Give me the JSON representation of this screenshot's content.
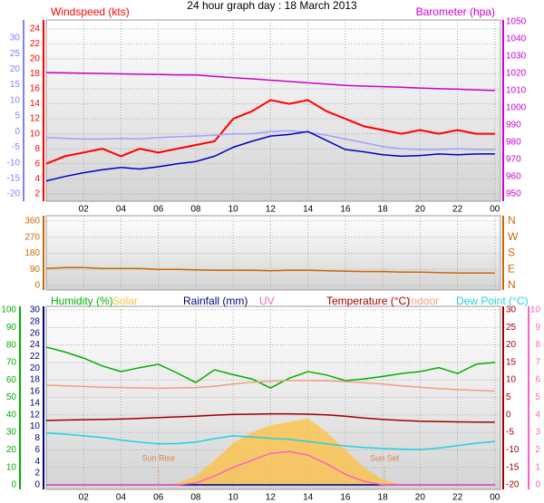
{
  "chart_data": [
    {
      "type": "line",
      "title": "24 hour graph day : 18 March 2013",
      "ylabel": "Windspeed (kts)",
      "y2label": "Barometer (hpa)",
      "x": [
        0,
        1,
        2,
        3,
        4,
        5,
        6,
        7,
        8,
        9,
        10,
        11,
        12,
        13,
        14,
        15,
        16,
        17,
        18,
        19,
        20,
        21,
        22,
        23,
        24
      ],
      "xlim": [
        0,
        24.3
      ],
      "xticks": [
        {
          "value": 2,
          "label": "02"
        },
        {
          "value": 4,
          "label": "04"
        },
        {
          "value": 6,
          "label": "06"
        },
        {
          "value": 8,
          "label": "08"
        },
        10,
        12,
        14,
        16,
        18,
        20,
        22,
        {
          "value": 24,
          "label": "00"
        }
      ],
      "ylim": [
        1,
        25.2
      ],
      "yticks": [
        2,
        4,
        6,
        8,
        10,
        12,
        14,
        16,
        18,
        20,
        22,
        24
      ],
      "ycolor": "#ff0000",
      "y2lim": [
        945.8,
        1051
      ],
      "y2ticks": [
        950,
        960,
        970,
        980,
        990,
        1000,
        1010,
        1020,
        1030,
        1040,
        1050
      ],
      "y2color": "#cc00cc",
      "y3lim": [
        -22.3,
        35.8
      ],
      "y3ticks": [
        -20,
        -15,
        -10,
        -5,
        0,
        5,
        10,
        15,
        20,
        25,
        30
      ],
      "y3color": "#8080ff",
      "grid": true,
      "series": [
        {
          "color": "#ff0000",
          "values": [
            6,
            7,
            7.5,
            8,
            7,
            8,
            7.5,
            8,
            8.5,
            9,
            12,
            13,
            14.5,
            14,
            14.5,
            13,
            12,
            11,
            10.5,
            10,
            10.5,
            10,
            10.5,
            10,
            10
          ]
        },
        {
          "color": "#a0a0ff",
          "values": [
            9.5,
            9.4,
            9.3,
            9.3,
            9.4,
            9.3,
            9.5,
            9.6,
            9.7,
            9.8,
            10,
            10,
            10.3,
            10.4,
            10.2,
            9.8,
            9.3,
            8.8,
            8.3,
            8,
            7.9,
            7.9,
            8,
            7.9,
            7.9
          ]
        },
        {
          "color": "#0000c0",
          "values": [
            3.7,
            4.3,
            4.8,
            5.2,
            5.5,
            5.3,
            5.6,
            6,
            6.3,
            7,
            8.2,
            9,
            9.7,
            9.9,
            10.3,
            9.1,
            7.9,
            7.6,
            7.2,
            7,
            7.1,
            7.3,
            7.2,
            7.3,
            7.3
          ]
        },
        {
          "color": "#cc00cc",
          "axis": "y2",
          "values": [
            1020.5,
            1020.3,
            1020.1,
            1019.9,
            1019.7,
            1019.5,
            1019.3,
            1019.1,
            1019,
            1018.3,
            1017.5,
            1016.8,
            1016,
            1015.3,
            1014.5,
            1013.8,
            1013,
            1012.6,
            1012.3,
            1011.9,
            1011.5,
            1011.1,
            1010.8,
            1010.4,
            1010
          ]
        }
      ]
    },
    {
      "type": "line",
      "x": [
        0,
        1,
        2,
        3,
        4,
        5,
        6,
        7,
        8,
        9,
        10,
        11,
        12,
        13,
        14,
        15,
        16,
        17,
        18,
        19,
        20,
        21,
        22,
        23,
        24
      ],
      "xlim": [
        0,
        24.3
      ],
      "ylim": [
        -25,
        390
      ],
      "yticks": [
        0,
        90,
        180,
        270,
        360
      ],
      "ycolor": "#cc6600",
      "y2lim": [
        -25,
        390
      ],
      "y2ticks": [
        {
          "value": 360,
          "label": "N"
        },
        {
          "value": 270,
          "label": "W"
        },
        {
          "value": 180,
          "label": "S"
        },
        {
          "value": 90,
          "label": "E"
        },
        {
          "value": 0,
          "label": "N"
        }
      ],
      "y2color": "#cc6600",
      "grid": true,
      "series": [
        {
          "color": "#cc6600",
          "values": [
            95,
            100,
            100,
            95,
            95,
            95,
            90,
            90,
            88,
            85,
            85,
            85,
            83,
            85,
            85,
            83,
            80,
            78,
            78,
            75,
            75,
            72,
            70,
            70,
            70
          ]
        }
      ]
    },
    {
      "type": "line",
      "x": [
        0,
        1,
        2,
        3,
        4,
        5,
        6,
        7,
        8,
        9,
        10,
        11,
        12,
        13,
        14,
        15,
        16,
        17,
        18,
        19,
        20,
        21,
        22,
        23,
        24
      ],
      "xlim": [
        0,
        24.3
      ],
      "xticks": [
        {
          "value": 2,
          "label": "02"
        },
        {
          "value": 4,
          "label": "04"
        },
        {
          "value": 6,
          "label": "06"
        },
        {
          "value": 8,
          "label": "08"
        },
        10,
        12,
        14,
        16,
        18,
        20,
        22,
        {
          "value": 24,
          "label": "00"
        }
      ],
      "ylim": [
        -2.6,
        102.1
      ],
      "yticks": [
        0,
        10,
        20,
        30,
        40,
        50,
        60,
        70,
        80,
        90,
        100
      ],
      "ycolor": "#00b000",
      "y2lim": [
        -21.3,
        31
      ],
      "y2ticks": [
        -20,
        -15,
        -10,
        -5,
        0,
        5,
        10,
        15,
        20,
        25,
        30
      ],
      "y2color": "#a00000",
      "y3lim": [
        -0.78,
        30.6
      ],
      "y3ticks": [
        0,
        2,
        4,
        6,
        8,
        10,
        12,
        14,
        16,
        18,
        20,
        22,
        24,
        26,
        28,
        30
      ],
      "y3color": "#000080",
      "y4lim": [
        -0.26,
        10.2
      ],
      "y4ticks": [
        0,
        1,
        2,
        3,
        4,
        5,
        6,
        7,
        8,
        9,
        10
      ],
      "y4color": "#ff60c0",
      "grid": true,
      "annotations": [
        {
          "text": "Sun Rise",
          "x": 6
        },
        {
          "text": "Sun Set",
          "x": 18.1
        }
      ],
      "series": [
        {
          "name": "Humidity (%)",
          "color": "#00b000",
          "values": [
            78.8,
            76,
            72.5,
            68,
            64.8,
            67,
            69,
            64,
            58.5,
            65.8,
            63,
            60.6,
            55.4,
            61,
            64.8,
            62.8,
            59.6,
            60.6,
            62,
            63.7,
            64.8,
            67,
            63.7,
            69,
            70
          ]
        },
        {
          "name": "Solar",
          "color": "#ffc040",
          "fill": true,
          "values": [
            0,
            0,
            0,
            0,
            0,
            0,
            0,
            1,
            5,
            14,
            24,
            30,
            34,
            36,
            38,
            30,
            20,
            10,
            3,
            0,
            0,
            0,
            0,
            0,
            0
          ]
        },
        {
          "name": "Rainfall (mm)",
          "color": "#000080",
          "axis": "y3",
          "values": [
            0,
            0,
            0,
            0,
            0,
            0,
            0,
            0,
            0,
            0,
            0,
            0,
            0,
            0,
            0,
            0,
            0,
            0,
            0,
            0,
            0,
            0,
            0,
            0,
            0
          ]
        },
        {
          "name": "UV",
          "color": "#ff60c0",
          "axis": "y4",
          "values": [
            0,
            0,
            0,
            0,
            0,
            0,
            0,
            0,
            0.1,
            0.5,
            1,
            1.4,
            1.8,
            1.9,
            1.7,
            1.2,
            0.6,
            0.2,
            0,
            0,
            0,
            0,
            0,
            0,
            0
          ]
        },
        {
          "name": "Temperature (°C)",
          "color": "#a00000",
          "axis": "y2",
          "values": [
            -1.6,
            -1.5,
            -1.4,
            -1.3,
            -1.2,
            -1,
            -0.8,
            -0.6,
            -0.4,
            -0.1,
            0.1,
            0.2,
            0.3,
            0.3,
            0.2,
            0,
            -0.4,
            -0.9,
            -1.3,
            -1.6,
            -1.8,
            -1.9,
            -2,
            -2.1,
            -2.1
          ]
        },
        {
          "name": "Indoor",
          "color": "#f0a080",
          "axis": "y2",
          "values": [
            8.5,
            8.3,
            8.1,
            7.9,
            7.8,
            7.7,
            7.6,
            7.7,
            7.8,
            8.2,
            8.8,
            9.3,
            9.6,
            9.8,
            9.8,
            9.7,
            9.5,
            9.2,
            8.8,
            8.3,
            7.9,
            7.5,
            7.2,
            7,
            6.8
          ]
        },
        {
          "name": "Dew Point (°C)",
          "color": "#20d0e0",
          "axis": "y2",
          "values": [
            -5.2,
            -5.5,
            -6,
            -6.5,
            -7.2,
            -7.8,
            -8.3,
            -8.2,
            -7.8,
            -6.8,
            -6,
            -6.3,
            -6.7,
            -7,
            -7.6,
            -8.3,
            -8.9,
            -9.3,
            -9.6,
            -9.8,
            -9.9,
            -9.5,
            -8.8,
            -8.1,
            -7.6
          ]
        }
      ]
    }
  ]
}
